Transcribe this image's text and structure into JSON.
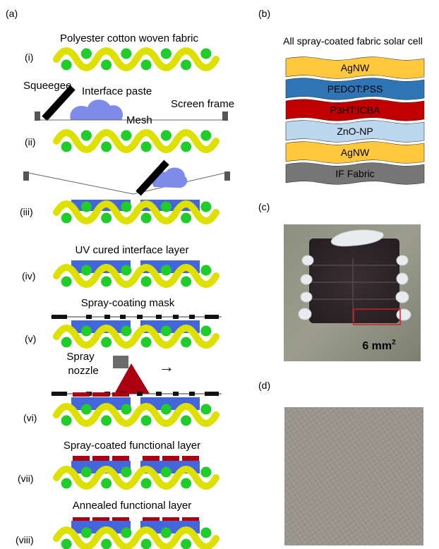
{
  "panel_a": {
    "label": "(a)",
    "steps": [
      {
        "roman": "(i)",
        "title": "Polyester cotton woven fabric"
      },
      {
        "roman": "(ii)",
        "title": ""
      },
      {
        "roman": "(iii)",
        "title": ""
      },
      {
        "roman": "(iv)",
        "title": "UV cured interface layer"
      },
      {
        "roman": "(v)",
        "title": "Spray-coating mask"
      },
      {
        "roman": "(vi)",
        "title": ""
      },
      {
        "roman": "(vii)",
        "title": "Spray-coated functional layer"
      },
      {
        "roman": "(viii)",
        "title": "Annealed functional layer"
      }
    ],
    "labels": {
      "squeegee": "Squeegee",
      "interface_paste": "Interface paste",
      "mesh": "Mesh",
      "screen_frame": "Screen frame",
      "spray": "Spray",
      "nozzle": "nozzle",
      "arrow": "→"
    }
  },
  "panel_b": {
    "label": "(b)",
    "title": "All spray-coated fabric solar cell",
    "layers": [
      {
        "name": "AgNW",
        "color": "#FFC83D",
        "text_color": "#000000"
      },
      {
        "name": "PEDOT:PSS",
        "color": "#2E75B6",
        "text_color": "#000000"
      },
      {
        "name": "P3HT:ICBA",
        "color": "#C00000",
        "text_color": "#000000"
      },
      {
        "name": "ZnO-NP",
        "color": "#BDD7EE",
        "text_color": "#000000"
      },
      {
        "name": "AgNW",
        "color": "#FFC83D",
        "text_color": "#000000"
      },
      {
        "name": "IF Fabric",
        "color": "#767676",
        "text_color": "#000000"
      }
    ]
  },
  "panel_c": {
    "label": "(c)",
    "area_label": "6 mm",
    "superscript": "2"
  },
  "panel_d": {
    "label": "(d)"
  },
  "colors": {
    "yarn": "#DDE000",
    "fiber": "#1FCC2A",
    "interface_layer": "#4466DD",
    "paste": "#7E8BE8",
    "functional_layer": "#AA0010",
    "nozzle_cone": "#AA0010",
    "mask": "#111111",
    "frame": "#555555"
  }
}
